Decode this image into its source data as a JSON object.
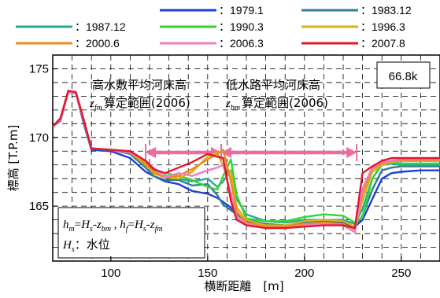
{
  "chart_data": {
    "type": "line",
    "xlabel": "横断距離　[m]",
    "ylabel": "標高 [T.P.m]",
    "xlim": [
      70,
      270
    ],
    "ylim": [
      161,
      176
    ],
    "xticks": [
      "100",
      "150",
      "200",
      "250"
    ],
    "yticks": [
      "165",
      "170",
      "175"
    ],
    "grid": true,
    "legend_position": "top",
    "station_label": "66.8k",
    "annotations": {
      "high_range_title": "高水敷平均河床高",
      "high_range_sub": "算定範囲(2006)",
      "high_range_symbol": "z_fm",
      "low_range_title": "低水路平均河床高",
      "low_range_sub": "算定範囲(2006)",
      "low_range_symbol": "z_bm",
      "high_range_x": [
        118,
        157
      ],
      "low_range_x": [
        157,
        227
      ],
      "range_y": 168.9
    },
    "formula": {
      "line1": "h_m=H_s-z_bm , h_f=H_s-z_fm",
      "line2_symbol": "H_s",
      "line2_text": "：水位"
    },
    "series": [
      {
        "name": "：1979.1",
        "color": "#1f3fd6",
        "x": [
          70,
          74,
          78,
          82,
          86,
          90,
          100,
          110,
          118,
          122,
          128,
          135,
          142,
          150,
          155,
          158,
          162,
          165,
          170,
          180,
          190,
          200,
          210,
          220,
          226,
          230,
          235,
          240,
          245,
          250,
          260,
          270
        ],
        "y": [
          170.8,
          171.2,
          173.3,
          173.2,
          171,
          169.1,
          169,
          168.5,
          167.5,
          167.2,
          166.8,
          166.6,
          166.1,
          165.9,
          165.6,
          165.3,
          164.9,
          164.4,
          163.9,
          163.7,
          163.5,
          163.8,
          163.9,
          163.8,
          163.5,
          164,
          165.5,
          167,
          167.4,
          167.5,
          167.6,
          167.6
        ]
      },
      {
        "name": "：1983.12",
        "color": "#2f7f91",
        "x": [
          70,
          74,
          78,
          82,
          86,
          90,
          100,
          110,
          118,
          122,
          128,
          135,
          142,
          150,
          155,
          158,
          162,
          165,
          170,
          180,
          190,
          200,
          210,
          220,
          226,
          230,
          235,
          240,
          245,
          250,
          260,
          270
        ],
        "y": [
          170.8,
          171.3,
          173.3,
          173.2,
          171.2,
          169.2,
          169.1,
          168.8,
          167.8,
          167.2,
          166.9,
          166.9,
          166.5,
          166.6,
          165.8,
          165.1,
          164.7,
          164.4,
          164,
          163.7,
          163.6,
          163.8,
          163.9,
          163.9,
          163.5,
          164.3,
          166.2,
          167.6,
          167.8,
          167.9,
          167.9,
          167.9
        ]
      },
      {
        "name": "：1987.12",
        "color": "#2aa89a",
        "x": [
          70,
          74,
          78,
          82,
          86,
          90,
          100,
          110,
          118,
          122,
          128,
          135,
          142,
          150,
          155,
          158,
          162,
          165,
          170,
          180,
          190,
          200,
          210,
          220,
          226,
          230,
          235,
          240,
          245,
          250,
          260,
          270
        ],
        "y": [
          170.8,
          171.3,
          173.3,
          173.2,
          171.2,
          169.2,
          169.1,
          168.9,
          168.1,
          167.5,
          167.2,
          167,
          166.8,
          167,
          166.4,
          166.8,
          167.6,
          165.5,
          164.4,
          163.9,
          163.8,
          164,
          164,
          164,
          163.7,
          164.8,
          167,
          168,
          168.1,
          168,
          168,
          168
        ]
      },
      {
        "name": "：1990.3",
        "color": "#33d633",
        "x": [
          70,
          74,
          78,
          82,
          86,
          90,
          100,
          110,
          118,
          122,
          128,
          135,
          142,
          150,
          155,
          158,
          162,
          165,
          170,
          180,
          190,
          200,
          210,
          220,
          226,
          230,
          235,
          240,
          245,
          250,
          260,
          270
        ],
        "y": [
          170.8,
          171.3,
          173.3,
          173.2,
          171.2,
          169.2,
          169.1,
          168.9,
          168,
          167.6,
          167.4,
          167.2,
          166.9,
          166.4,
          166.2,
          167.2,
          168.4,
          165.8,
          164.1,
          163.9,
          163.9,
          164.2,
          164.4,
          164.3,
          163.8,
          164.2,
          167,
          168.1,
          168.2,
          168.1,
          168.1,
          168.1
        ]
      },
      {
        "name": "：1996.3",
        "color": "#d9b21a",
        "x": [
          70,
          74,
          78,
          82,
          86,
          90,
          100,
          110,
          118,
          122,
          128,
          135,
          142,
          150,
          155,
          158,
          162,
          165,
          170,
          180,
          190,
          200,
          210,
          220,
          226,
          230,
          235,
          240,
          245,
          250,
          260,
          270
        ],
        "y": [
          170.8,
          171.3,
          173.3,
          173.2,
          171.2,
          169.2,
          169.1,
          168.9,
          168,
          167.5,
          167.1,
          167,
          167.5,
          168.6,
          168.9,
          167.9,
          167.5,
          164.9,
          164,
          163.6,
          163.6,
          163.9,
          164,
          163.9,
          163.5,
          165.4,
          167.5,
          168,
          168.2,
          168.3,
          168.3,
          168.3
        ]
      },
      {
        "name": "：2000.6",
        "color": "#f08a1c",
        "x": [
          70,
          74,
          78,
          82,
          86,
          90,
          100,
          110,
          118,
          122,
          128,
          135,
          142,
          150,
          155,
          158,
          162,
          165,
          170,
          180,
          190,
          200,
          210,
          220,
          226,
          230,
          235,
          240,
          245,
          250,
          260,
          270
        ],
        "y": [
          170.8,
          171.3,
          173.3,
          173.2,
          171.2,
          169.2,
          169.1,
          169,
          168.1,
          167.4,
          167.1,
          167.2,
          167.7,
          168.4,
          168.8,
          169.1,
          166.8,
          164.6,
          163.8,
          163.5,
          163.5,
          163.7,
          163.8,
          163.7,
          163.3,
          165.9,
          167.7,
          168.1,
          168.3,
          168.3,
          168.3,
          168.3
        ]
      },
      {
        "name": "：2006.3",
        "color": "#f07cc2",
        "x": [
          70,
          74,
          78,
          82,
          86,
          90,
          100,
          110,
          118,
          122,
          128,
          135,
          142,
          150,
          155,
          158,
          162,
          165,
          170,
          180,
          190,
          200,
          210,
          220,
          226,
          230,
          235,
          240,
          245,
          250,
          260,
          270
        ],
        "y": [
          170.8,
          171.3,
          173.3,
          173.2,
          171.2,
          169.2,
          169.1,
          168.9,
          168.3,
          167.8,
          167.1,
          167.4,
          167.2,
          167.6,
          167.8,
          168,
          165.9,
          164.2,
          163.7,
          163.4,
          163.4,
          163.6,
          163.7,
          163.6,
          163.1,
          166.3,
          167.8,
          168.2,
          168.3,
          168.4,
          168.4,
          168.4
        ]
      },
      {
        "name": "：2007.8",
        "color": "#e3162a",
        "x": [
          70,
          74,
          78,
          82,
          86,
          90,
          100,
          110,
          118,
          122,
          128,
          135,
          142,
          150,
          155,
          158,
          162,
          165,
          170,
          180,
          190,
          200,
          210,
          220,
          226,
          230,
          235,
          240,
          245,
          250,
          260,
          270
        ],
        "y": [
          170.8,
          171.4,
          173.4,
          173.3,
          171.3,
          169.2,
          169.1,
          169,
          168.3,
          167.7,
          167.4,
          167.8,
          168.2,
          168.8,
          168.6,
          168.5,
          165.4,
          164,
          163.6,
          163.4,
          163.4,
          163.5,
          163.6,
          163.6,
          163.4,
          167.4,
          167.9,
          168.3,
          168.5,
          168.5,
          168.5,
          168.5
        ]
      }
    ]
  }
}
